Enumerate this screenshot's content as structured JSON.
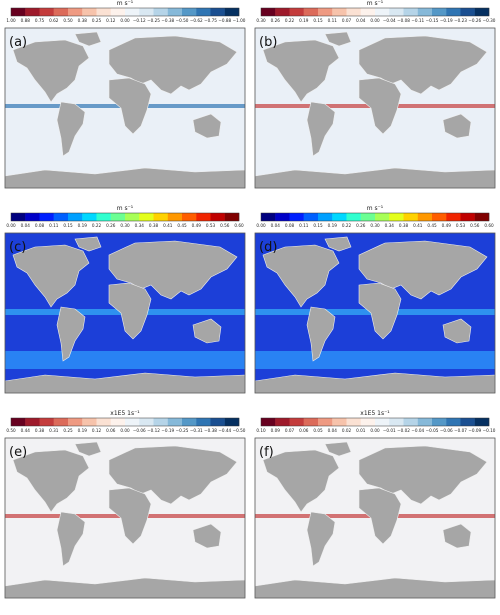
{
  "panels": [
    {
      "label": "(a)",
      "unit": "m s⁻¹",
      "ticks": [
        "1.00",
        "0.88",
        "0.75",
        "0.62",
        "0.50",
        "0.38",
        "0.25",
        "0.12",
        "0.00",
        "−0.12",
        "−0.25",
        "−0.38",
        "−0.50",
        "−0.62",
        "−0.75",
        "−0.88",
        "−1.00"
      ]
    },
    {
      "label": "(b)",
      "unit": "m s⁻¹",
      "ticks": [
        "0.30",
        "0.26",
        "0.22",
        "0.19",
        "0.15",
        "0.11",
        "0.07",
        "0.04",
        "0.00",
        "−0.04",
        "−0.08",
        "−0.11",
        "−0.15",
        "−0.19",
        "−0.23",
        "−0.26",
        "−0.30"
      ]
    },
    {
      "label": "(c)",
      "unit": "m s⁻¹",
      "ticks": [
        "0.00",
        "0.04",
        "0.08",
        "0.11",
        "0.15",
        "0.19",
        "0.22",
        "0.26",
        "0.30",
        "0.34",
        "0.38",
        "0.41",
        "0.45",
        "0.49",
        "0.53",
        "0.56",
        "0.60"
      ]
    },
    {
      "label": "(d)",
      "unit": "m s⁻¹",
      "ticks": [
        "0.00",
        "0.04",
        "0.08",
        "0.11",
        "0.15",
        "0.19",
        "0.22",
        "0.26",
        "0.30",
        "0.34",
        "0.38",
        "0.41",
        "0.45",
        "0.49",
        "0.53",
        "0.56",
        "0.60"
      ]
    },
    {
      "label": "(e)",
      "unit": "x1E5 1s⁻¹",
      "ticks": [
        "0.50",
        "0.44",
        "0.38",
        "0.31",
        "0.25",
        "0.19",
        "0.12",
        "0.06",
        "0.00",
        "−0.06",
        "−0.12",
        "−0.19",
        "−0.25",
        "−0.31",
        "−0.38",
        "−0.44",
        "−0.50"
      ]
    },
    {
      "label": "(f)",
      "unit": "x1E5 1s⁻¹",
      "ticks": [
        "0.10",
        "0.09",
        "0.07",
        "0.06",
        "0.05",
        "0.04",
        "0.02",
        "0.01",
        "0.00",
        "−0.01",
        "−0.02",
        "−0.04",
        "−0.05",
        "−0.06",
        "−0.07",
        "−0.09",
        "−0.10"
      ]
    }
  ]
}
